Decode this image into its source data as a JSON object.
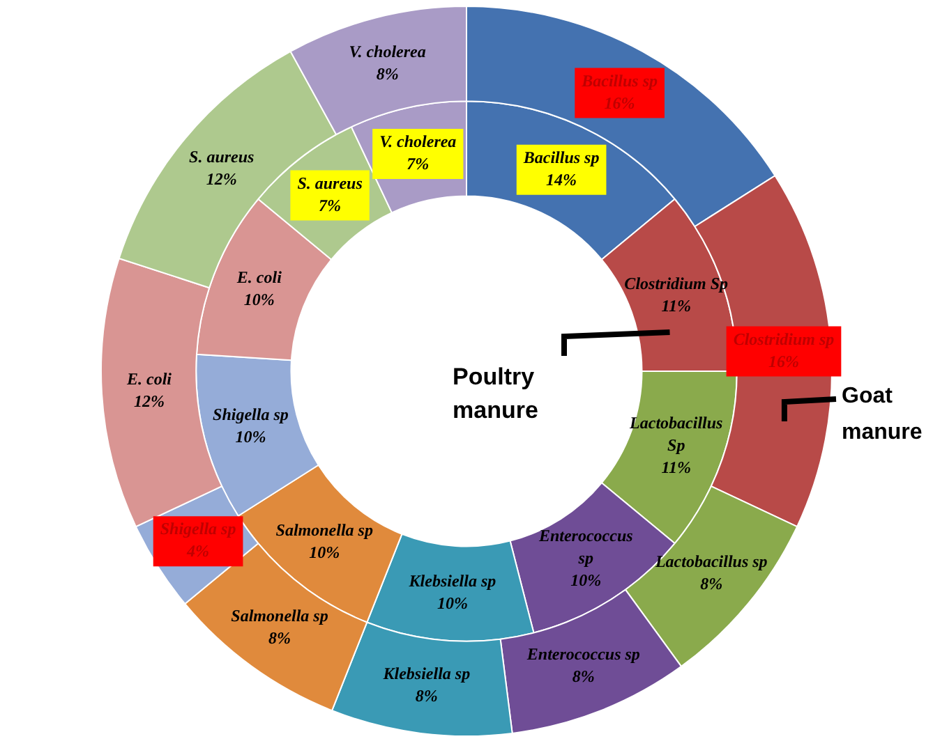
{
  "chart_data": {
    "type": "donut",
    "categories": [
      "Bacillus sp",
      "Clostridium sp",
      "Lactobacillus sp",
      "Enterococcus sp",
      "Klebsiella sp",
      "Salmonella sp",
      "Shigella sp",
      "E. coli",
      "S. aureus",
      "V. cholerea"
    ],
    "colors": [
      "#4472b0",
      "#b84a48",
      "#8aaa4c",
      "#6f4d96",
      "#3a9ab5",
      "#e08a3c",
      "#95acd8",
      "#d99593",
      "#aec98e",
      "#a99bc6"
    ],
    "series": [
      {
        "name": "Goat manure",
        "values": [
          16,
          16,
          8,
          8,
          8,
          8,
          4,
          12,
          12,
          8
        ],
        "value_labels": [
          "16%",
          "16%",
          "8%",
          "8%",
          "8%",
          "8%",
          "4%",
          "12%",
          "12%",
          "8%"
        ]
      },
      {
        "name": "Poultry manure",
        "values": [
          14,
          11,
          11,
          10,
          10,
          10,
          10,
          10,
          7,
          7
        ],
        "value_labels": [
          "Bacillus sp\n14%",
          "Clostridium Sp\n11%",
          "Lactobacillus\nSp\n11%",
          "Enterococcus\nsp\n10%",
          "Klebsiella sp\n10%",
          "Salmonella sp\n10%",
          "Shigella sp\n10%",
          "E. coli\n10%",
          "S. aureus\n7%",
          "V. cholerea\n7%"
        ]
      }
    ],
    "legend": false
  }
}
